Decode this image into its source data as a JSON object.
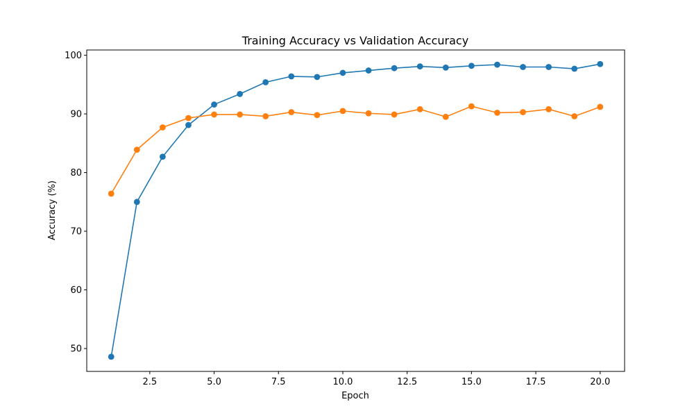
{
  "chart_data": {
    "type": "line",
    "title": "Training Accuracy vs Validation Accuracy",
    "xlabel": "Epoch",
    "ylabel": "Accuracy (%)",
    "xlim": [
      0.05,
      20.95
    ],
    "ylim": [
      46.1,
      100.9
    ],
    "x_ticks": [
      2.5,
      5.0,
      7.5,
      10.0,
      12.5,
      15.0,
      17.5,
      20.0
    ],
    "x_tick_labels": [
      "2.5",
      "5.0",
      "7.5",
      "10.0",
      "12.5",
      "15.0",
      "17.5",
      "20.0"
    ],
    "y_ticks": [
      50,
      60,
      70,
      80,
      90,
      100
    ],
    "y_tick_labels": [
      "50",
      "60",
      "70",
      "80",
      "90",
      "100"
    ],
    "grid": false,
    "x": [
      1,
      2,
      3,
      4,
      5,
      6,
      7,
      8,
      9,
      10,
      11,
      12,
      13,
      14,
      15,
      16,
      17,
      18,
      19,
      20
    ],
    "series": [
      {
        "color": "#1f77b4",
        "marker": "circle",
        "values": [
          48.6,
          75.0,
          82.7,
          88.1,
          91.6,
          93.4,
          95.4,
          96.4,
          96.3,
          97.0,
          97.4,
          97.8,
          98.1,
          97.9,
          98.2,
          98.4,
          98.0,
          98.0,
          97.7,
          98.5
        ]
      },
      {
        "color": "#ff7f0e",
        "marker": "circle",
        "values": [
          76.4,
          83.9,
          87.7,
          89.3,
          89.9,
          89.9,
          89.6,
          90.3,
          89.8,
          90.5,
          90.1,
          89.9,
          90.8,
          89.5,
          91.3,
          90.2,
          90.3,
          90.8,
          89.6,
          91.2
        ]
      }
    ]
  }
}
